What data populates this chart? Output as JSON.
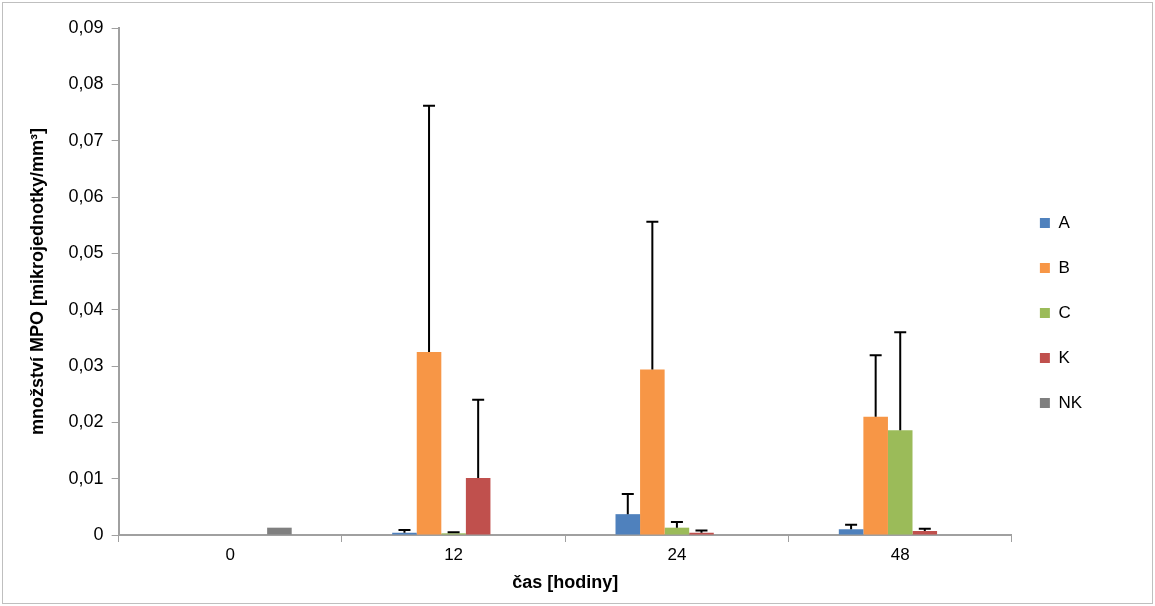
{
  "chart_data": {
    "type": "bar",
    "xlabel": "čas [hodiny]",
    "ylabel": "množství MPO [mikrojednotky/mm³]",
    "categories": [
      "0",
      "12",
      "24",
      "48"
    ],
    "series": [
      {
        "name": "A",
        "color": "#4f81bd",
        "values": [
          null,
          0.0004,
          0.0037,
          0.001
        ],
        "errors": [
          null,
          [
            0.0004,
            0.0009
          ],
          [
            0.0037,
            0.0073
          ],
          [
            0.001,
            0.0018
          ]
        ]
      },
      {
        "name": "B",
        "color": "#f79646",
        "values": [
          null,
          0.0325,
          0.0294,
          0.021
        ],
        "errors": [
          null,
          [
            0.0325,
            0.0762
          ],
          [
            0.0294,
            0.0556
          ],
          [
            0.021,
            0.0319
          ]
        ]
      },
      {
        "name": "C",
        "color": "#9bbb59",
        "values": [
          null,
          0.0003,
          0.0013,
          0.0186
        ],
        "errors": [
          null,
          [
            0.0003,
            0.0005
          ],
          [
            0.0013,
            0.0023
          ],
          [
            0.0186,
            0.036
          ]
        ]
      },
      {
        "name": "K",
        "color": "#c0504d",
        "values": [
          null,
          0.0101,
          0.0004,
          0.0007
        ],
        "errors": [
          null,
          [
            0.0101,
            0.024
          ],
          [
            0.0004,
            0.0008
          ],
          [
            0.0007,
            0.0011
          ]
        ]
      },
      {
        "name": "NK",
        "color": "#7f7f7f",
        "values": [
          0.0013,
          null,
          null,
          null
        ]
      }
    ],
    "ylim": [
      0,
      0.09
    ],
    "yticks": [
      {
        "value": 0,
        "label": "0"
      },
      {
        "value": 0.01,
        "label": "0,01"
      },
      {
        "value": 0.02,
        "label": "0,02"
      },
      {
        "value": 0.03,
        "label": "0,03"
      },
      {
        "value": 0.04,
        "label": "0,04"
      },
      {
        "value": 0.05,
        "label": "0,05"
      },
      {
        "value": 0.06,
        "label": "0,06"
      },
      {
        "value": 0.07,
        "label": "0,07"
      },
      {
        "value": 0.08,
        "label": "0,08"
      },
      {
        "value": 0.09,
        "label": "0,09"
      }
    ],
    "grid": false,
    "legend": "right"
  }
}
